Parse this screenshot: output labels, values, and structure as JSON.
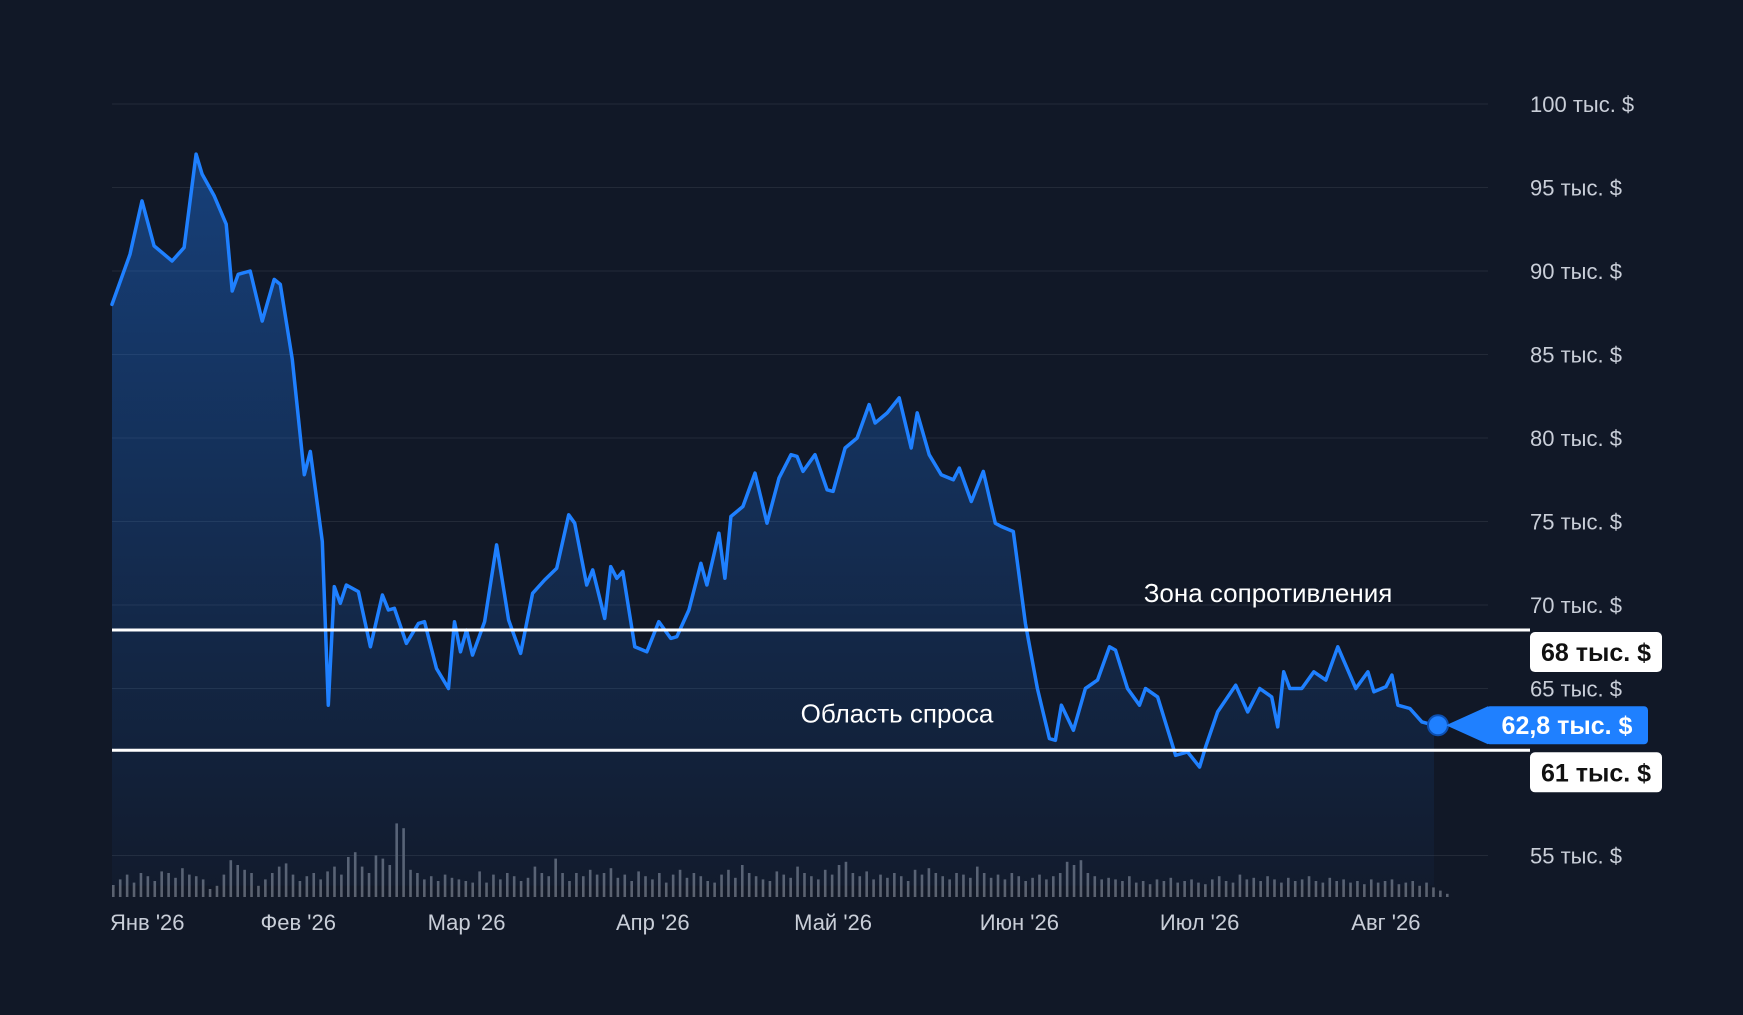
{
  "chart_data": {
    "type": "area",
    "y_axis": {
      "ticks": [
        {
          "value": 100,
          "label": "100 тыс. $"
        },
        {
          "value": 95,
          "label": "95 тыс. $"
        },
        {
          "value": 90,
          "label": "90 тыс. $"
        },
        {
          "value": 85,
          "label": "85 тыс. $"
        },
        {
          "value": 80,
          "label": "80 тыс. $"
        },
        {
          "value": 75,
          "label": "75 тыс. $"
        },
        {
          "value": 70,
          "label": "70 тыс. $"
        },
        {
          "value": 65,
          "label": "65 тыс. $"
        },
        {
          "value": 55,
          "label": "55 тыс. $"
        }
      ],
      "ylim": [
        52,
        102
      ],
      "unit": "тыс. $",
      "grid": true,
      "position": "right"
    },
    "x_axis": {
      "ticks": [
        {
          "date": "2026-01-01",
          "label": "Янв '26"
        },
        {
          "date": "2026-02-01",
          "label": "Фев '26"
        },
        {
          "date": "2026-03-01",
          "label": "Мар '26"
        },
        {
          "date": "2026-04-01",
          "label": "Апр '26"
        },
        {
          "date": "2026-05-01",
          "label": "Май '26"
        },
        {
          "date": "2026-06-01",
          "label": "Июн '26"
        },
        {
          "date": "2026-07-01",
          "label": "Июл '26"
        },
        {
          "date": "2026-08-01",
          "label": "Авг '26"
        }
      ],
      "xlim": [
        "2026-01-01",
        "2026-08-13"
      ]
    },
    "series": [
      {
        "color": "#1f80ff",
        "points": [
          [
            "2026-01-01",
            88.0
          ],
          [
            "2026-01-04",
            91.0
          ],
          [
            "2026-01-06",
            94.2
          ],
          [
            "2026-01-08",
            91.5
          ],
          [
            "2026-01-11",
            90.6
          ],
          [
            "2026-01-13",
            91.4
          ],
          [
            "2026-01-15",
            97.0
          ],
          [
            "2026-01-16",
            95.8
          ],
          [
            "2026-01-18",
            94.5
          ],
          [
            "2026-01-20",
            92.8
          ],
          [
            "2026-01-21",
            88.8
          ],
          [
            "2026-01-22",
            89.8
          ],
          [
            "2026-01-24",
            90.0
          ],
          [
            "2026-01-26",
            87.0
          ],
          [
            "2026-01-28",
            89.5
          ],
          [
            "2026-01-29",
            89.2
          ],
          [
            "2026-01-31",
            84.7
          ],
          [
            "2026-02-02",
            77.8
          ],
          [
            "2026-02-03",
            79.2
          ],
          [
            "2026-02-05",
            73.8
          ],
          [
            "2026-02-06",
            64.0
          ],
          [
            "2026-02-07",
            71.1
          ],
          [
            "2026-02-08",
            70.1
          ],
          [
            "2026-02-09",
            71.2
          ],
          [
            "2026-02-11",
            70.8
          ],
          [
            "2026-02-13",
            67.5
          ],
          [
            "2026-02-15",
            70.6
          ],
          [
            "2026-02-16",
            69.7
          ],
          [
            "2026-02-17",
            69.8
          ],
          [
            "2026-02-19",
            67.7
          ],
          [
            "2026-02-21",
            68.9
          ],
          [
            "2026-02-22",
            69.0
          ],
          [
            "2026-02-24",
            66.2
          ],
          [
            "2026-02-26",
            65.0
          ],
          [
            "2026-02-27",
            69.0
          ],
          [
            "2026-02-28",
            67.2
          ],
          [
            "2026-03-01",
            68.5
          ],
          [
            "2026-03-02",
            67.0
          ],
          [
            "2026-03-04",
            69.0
          ],
          [
            "2026-03-06",
            73.6
          ],
          [
            "2026-03-08",
            69.1
          ],
          [
            "2026-03-10",
            67.1
          ],
          [
            "2026-03-12",
            70.7
          ],
          [
            "2026-03-14",
            71.5
          ],
          [
            "2026-03-16",
            72.2
          ],
          [
            "2026-03-18",
            75.4
          ],
          [
            "2026-03-19",
            74.9
          ],
          [
            "2026-03-21",
            71.2
          ],
          [
            "2026-03-22",
            72.1
          ],
          [
            "2026-03-24",
            69.2
          ],
          [
            "2026-03-25",
            72.3
          ],
          [
            "2026-03-26",
            71.6
          ],
          [
            "2026-03-27",
            72.0
          ],
          [
            "2026-03-29",
            67.5
          ],
          [
            "2026-03-31",
            67.2
          ],
          [
            "2026-04-02",
            69.0
          ],
          [
            "2026-04-04",
            68.0
          ],
          [
            "2026-04-05",
            68.1
          ],
          [
            "2026-04-07",
            69.7
          ],
          [
            "2026-04-09",
            72.5
          ],
          [
            "2026-04-10",
            71.2
          ],
          [
            "2026-04-12",
            74.3
          ],
          [
            "2026-04-13",
            71.6
          ],
          [
            "2026-04-14",
            75.3
          ],
          [
            "2026-04-16",
            75.9
          ],
          [
            "2026-04-18",
            77.9
          ],
          [
            "2026-04-20",
            74.9
          ],
          [
            "2026-04-22",
            77.6
          ],
          [
            "2026-04-24",
            79.0
          ],
          [
            "2026-04-25",
            78.9
          ],
          [
            "2026-04-26",
            78.0
          ],
          [
            "2026-04-28",
            79.0
          ],
          [
            "2026-04-30",
            76.9
          ],
          [
            "2026-05-01",
            76.8
          ],
          [
            "2026-05-03",
            79.4
          ],
          [
            "2026-05-05",
            80.0
          ],
          [
            "2026-05-07",
            82.0
          ],
          [
            "2026-05-08",
            80.9
          ],
          [
            "2026-05-10",
            81.5
          ],
          [
            "2026-05-12",
            82.4
          ],
          [
            "2026-05-14",
            79.4
          ],
          [
            "2026-05-15",
            81.5
          ],
          [
            "2026-05-17",
            79.0
          ],
          [
            "2026-05-19",
            77.8
          ],
          [
            "2026-05-21",
            77.5
          ],
          [
            "2026-05-22",
            78.2
          ],
          [
            "2026-05-24",
            76.2
          ],
          [
            "2026-05-26",
            78.0
          ],
          [
            "2026-05-28",
            74.9
          ],
          [
            "2026-05-29",
            74.7
          ],
          [
            "2026-05-31",
            74.4
          ],
          [
            "2026-06-02",
            68.9
          ],
          [
            "2026-06-04",
            65.0
          ],
          [
            "2026-06-06",
            62.0
          ],
          [
            "2026-06-07",
            61.9
          ],
          [
            "2026-06-08",
            64.0
          ],
          [
            "2026-06-10",
            62.5
          ],
          [
            "2026-06-12",
            65.0
          ],
          [
            "2026-06-14",
            65.5
          ],
          [
            "2026-06-16",
            67.5
          ],
          [
            "2026-06-17",
            67.3
          ],
          [
            "2026-06-19",
            65.0
          ],
          [
            "2026-06-21",
            64.0
          ],
          [
            "2026-06-22",
            65.0
          ],
          [
            "2026-06-24",
            64.5
          ],
          [
            "2026-06-27",
            61.0
          ],
          [
            "2026-06-29",
            61.2
          ],
          [
            "2026-07-01",
            60.3
          ],
          [
            "2026-07-02",
            61.5
          ],
          [
            "2026-07-04",
            63.6
          ],
          [
            "2026-07-07",
            65.2
          ],
          [
            "2026-07-09",
            63.6
          ],
          [
            "2026-07-11",
            65.0
          ],
          [
            "2026-07-13",
            64.5
          ],
          [
            "2026-07-14",
            62.7
          ],
          [
            "2026-07-15",
            66.0
          ],
          [
            "2026-07-16",
            65.0
          ],
          [
            "2026-07-18",
            65.0
          ],
          [
            "2026-07-20",
            66.0
          ],
          [
            "2026-07-22",
            65.5
          ],
          [
            "2026-07-24",
            67.5
          ],
          [
            "2026-07-27",
            65.0
          ],
          [
            "2026-07-29",
            66.0
          ],
          [
            "2026-07-30",
            64.8
          ],
          [
            "2026-08-01",
            65.1
          ],
          [
            "2026-08-02",
            65.8
          ],
          [
            "2026-08-03",
            64.0
          ],
          [
            "2026-08-05",
            63.8
          ],
          [
            "2026-08-07",
            63.0
          ],
          [
            "2026-08-09",
            62.8
          ]
        ]
      }
    ],
    "volume": {
      "color": "#5b6270",
      "values": [
        0.15,
        0.22,
        0.28,
        0.18,
        0.3,
        0.26,
        0.2,
        0.32,
        0.3,
        0.24,
        0.36,
        0.28,
        0.26,
        0.22,
        0.1,
        0.14,
        0.28,
        0.46,
        0.4,
        0.34,
        0.3,
        0.14,
        0.22,
        0.3,
        0.38,
        0.42,
        0.28,
        0.2,
        0.26,
        0.3,
        0.22,
        0.32,
        0.38,
        0.28,
        0.5,
        0.56,
        0.38,
        0.3,
        0.52,
        0.48,
        0.4,
        0.92,
        0.86,
        0.34,
        0.3,
        0.22,
        0.26,
        0.2,
        0.28,
        0.24,
        0.22,
        0.2,
        0.18,
        0.32,
        0.18,
        0.28,
        0.22,
        0.3,
        0.26,
        0.2,
        0.24,
        0.38,
        0.3,
        0.26,
        0.48,
        0.3,
        0.2,
        0.3,
        0.26,
        0.34,
        0.28,
        0.3,
        0.36,
        0.24,
        0.28,
        0.2,
        0.32,
        0.26,
        0.22,
        0.3,
        0.18,
        0.28,
        0.34,
        0.24,
        0.3,
        0.26,
        0.2,
        0.18,
        0.28,
        0.34,
        0.24,
        0.4,
        0.3,
        0.26,
        0.22,
        0.2,
        0.32,
        0.28,
        0.24,
        0.38,
        0.3,
        0.26,
        0.22,
        0.34,
        0.28,
        0.4,
        0.44,
        0.3,
        0.26,
        0.32,
        0.22,
        0.28,
        0.24,
        0.3,
        0.26,
        0.2,
        0.34,
        0.28,
        0.36,
        0.3,
        0.26,
        0.22,
        0.3,
        0.28,
        0.24,
        0.38,
        0.3,
        0.24,
        0.28,
        0.22,
        0.3,
        0.26,
        0.2,
        0.24,
        0.28,
        0.22,
        0.26,
        0.3,
        0.44,
        0.4,
        0.46,
        0.3,
        0.26,
        0.22,
        0.24,
        0.22,
        0.2,
        0.26,
        0.18,
        0.2,
        0.16,
        0.22,
        0.2,
        0.24,
        0.18,
        0.2,
        0.22,
        0.18,
        0.16,
        0.22,
        0.26,
        0.2,
        0.18,
        0.28,
        0.22,
        0.24,
        0.2,
        0.26,
        0.22,
        0.18,
        0.24,
        0.2,
        0.22,
        0.26,
        0.2,
        0.18,
        0.24,
        0.2,
        0.22,
        0.18,
        0.2,
        0.16,
        0.22,
        0.18,
        0.2,
        0.22,
        0.16,
        0.18,
        0.2,
        0.14,
        0.18,
        0.12,
        0.08,
        0.04
      ]
    },
    "reference_lines": [
      {
        "value": 68.5,
        "line_color": "#ffffff",
        "label": "68 тыс. $",
        "zone_label": "Зона сопротивления",
        "zone_label_side": "above"
      },
      {
        "value": 61.3,
        "line_color": "#ffffff",
        "label": "61 тыс. $",
        "zone_label": "Область спроса",
        "zone_label_side": "above"
      }
    ],
    "current_price": {
      "value": 62.8,
      "label": "62,8 тыс. $",
      "color": "#1f80ff"
    },
    "legend": "none"
  }
}
